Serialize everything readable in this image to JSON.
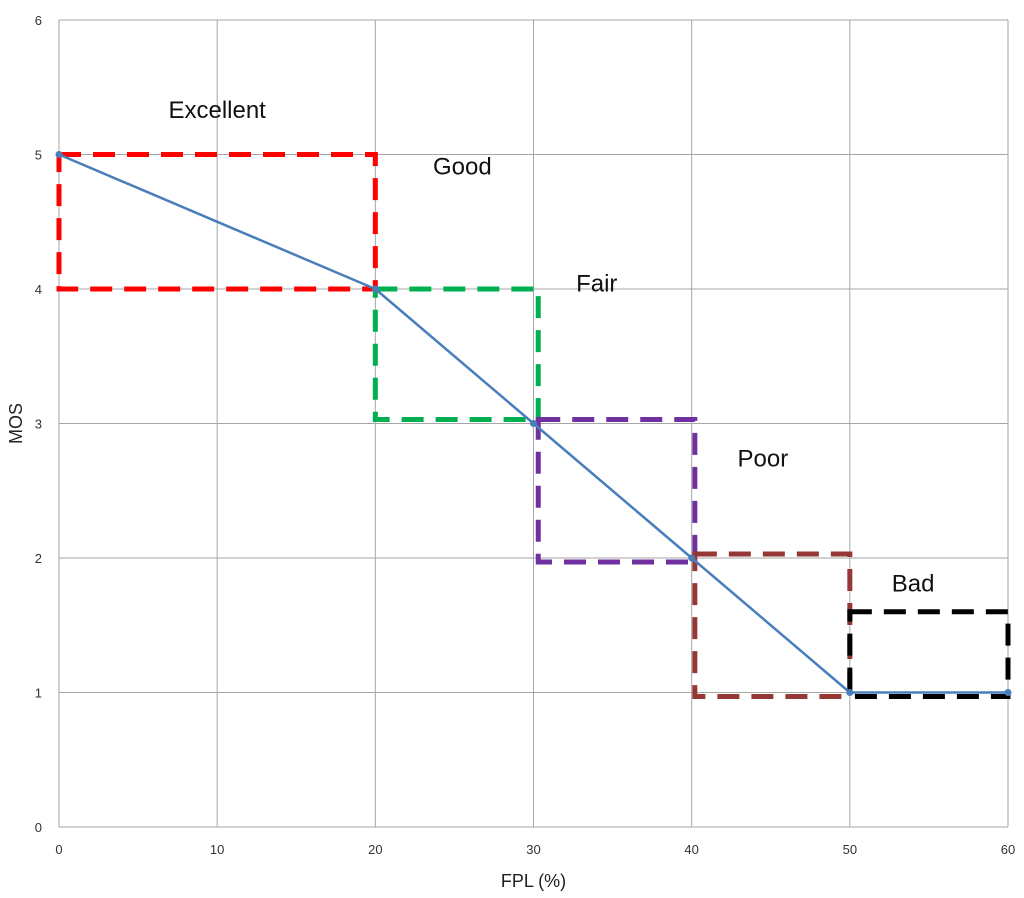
{
  "chart_data": {
    "type": "line",
    "title": "",
    "xlabel": "FPL (%)",
    "ylabel": "MOS",
    "xlim": [
      0,
      60
    ],
    "ylim": [
      0,
      6
    ],
    "x_ticks": [
      0,
      10,
      20,
      30,
      40,
      50,
      60
    ],
    "y_ticks": [
      0,
      1,
      2,
      3,
      4,
      5,
      6
    ],
    "grid": true,
    "legend": "none",
    "series": [
      {
        "color": "#4a7ebb",
        "x": [
          0,
          20,
          30,
          40,
          50,
          60
        ],
        "y": [
          5,
          4,
          3,
          2,
          1,
          1
        ]
      }
    ],
    "regions": [
      {
        "label": "Excellent",
        "color": "#ff0000",
        "x0": 0,
        "x1": 20,
        "y0": 4,
        "y1": 5,
        "label_x": 10,
        "label_y": 5.27
      },
      {
        "label": "Good",
        "color": "#00b050",
        "x0": 20,
        "x1": 30.3,
        "y0": 3.03,
        "y1": 4,
        "label_x": 25.5,
        "label_y": 4.85
      },
      {
        "label": "Fair",
        "color": "#7030a0",
        "x0": 30.3,
        "x1": 40.2,
        "y0": 1.97,
        "y1": 3.03,
        "label_x": 34,
        "label_y": 3.98
      },
      {
        "label": "Poor",
        "color": "#953735",
        "x0": 40.2,
        "x1": 50,
        "y0": 0.97,
        "y1": 2.03,
        "label_x": 44.5,
        "label_y": 2.68
      },
      {
        "label": "Bad",
        "color": "#000000",
        "x0": 50,
        "x1": 60,
        "y0": 0.97,
        "y1": 1.6,
        "label_x": 54,
        "label_y": 1.75
      }
    ]
  }
}
